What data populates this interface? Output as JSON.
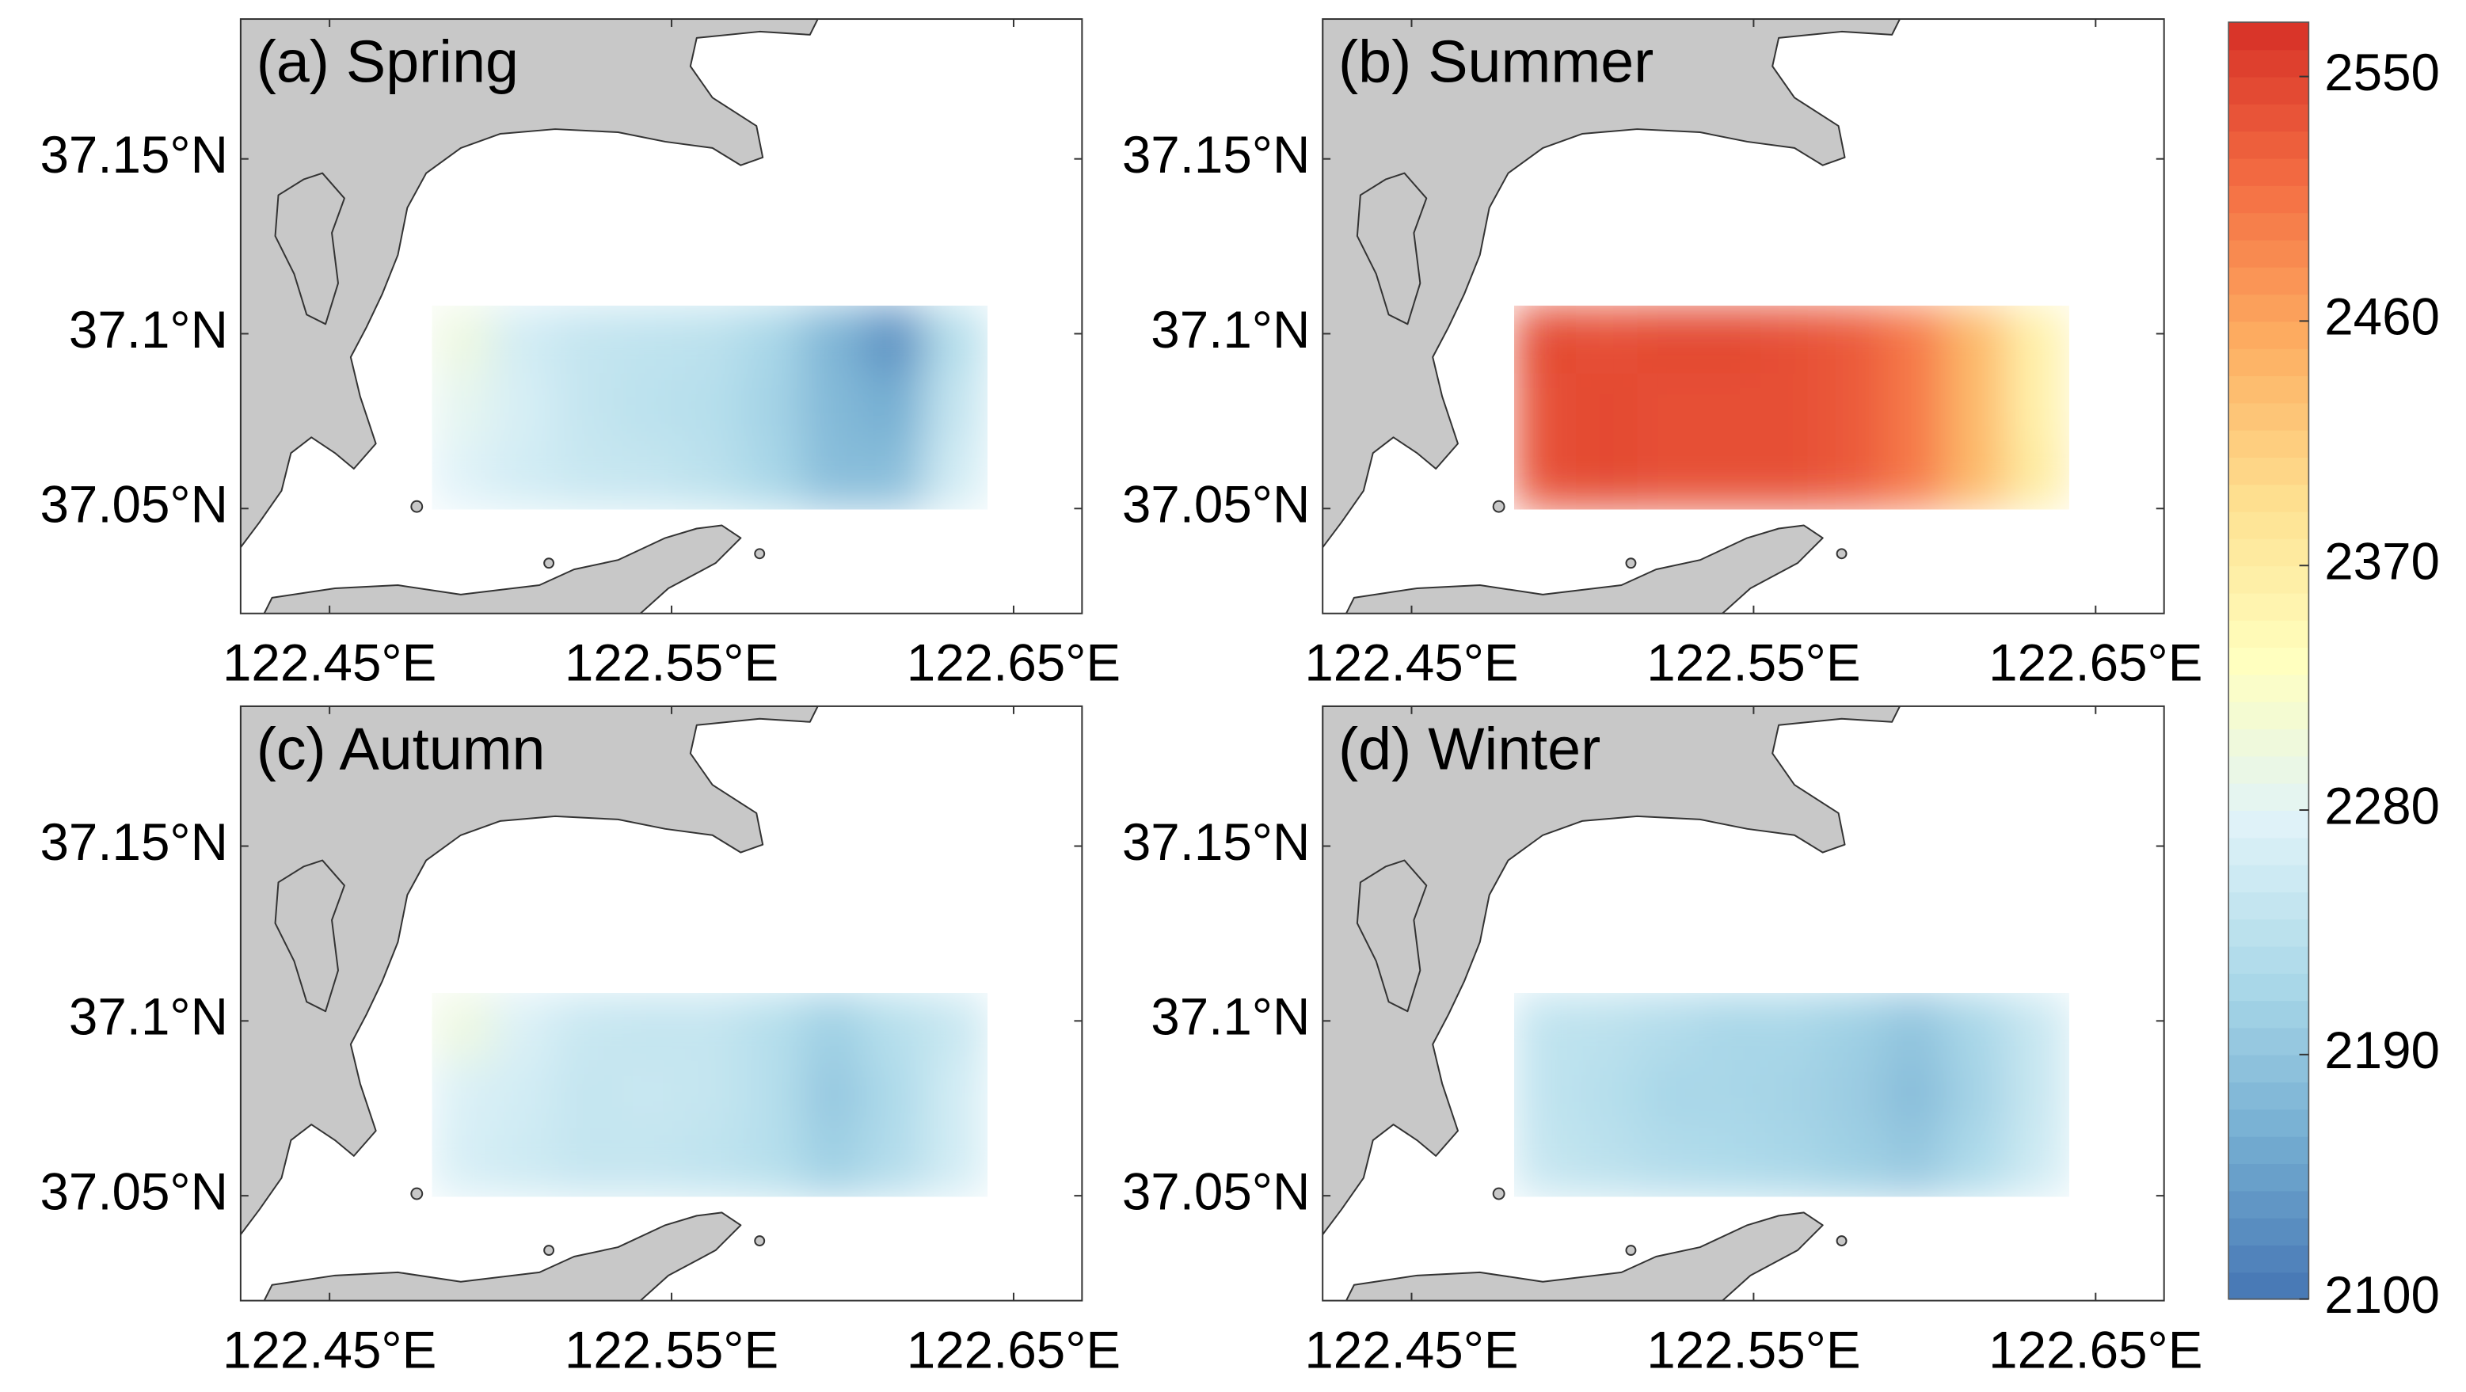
{
  "panels": [
    {
      "title": "(a) Spring",
      "values": [
        [
          2300,
          2260,
          2245,
          2240,
          2235,
          2215,
          2170,
          2130,
          2230
        ],
        [
          2285,
          2265,
          2245,
          2235,
          2230,
          2210,
          2175,
          2160,
          2245
        ],
        [
          2275,
          2260,
          2250,
          2245,
          2235,
          2215,
          2180,
          2180,
          2260
        ]
      ]
    },
    {
      "title": "(b) Summer",
      "values": [
        [
          2545,
          2540,
          2545,
          2545,
          2540,
          2530,
          2500,
          2440,
          2360
        ],
        [
          2540,
          2545,
          2540,
          2540,
          2540,
          2530,
          2500,
          2440,
          2360
        ],
        [
          2540,
          2545,
          2540,
          2540,
          2540,
          2530,
          2500,
          2440,
          2370
        ]
      ]
    },
    {
      "title": "(c) Autumn",
      "values": [
        [
          2300,
          2270,
          2250,
          2245,
          2245,
          2230,
          2205,
          2230,
          2250
        ],
        [
          2270,
          2260,
          2245,
          2250,
          2245,
          2230,
          2195,
          2220,
          2260
        ],
        [
          2265,
          2255,
          2245,
          2245,
          2240,
          2230,
          2205,
          2225,
          2260
        ]
      ]
    },
    {
      "title": "(d) Winter",
      "values": [
        [
          2240,
          2235,
          2225,
          2215,
          2215,
          2205,
          2190,
          2215,
          2250
        ],
        [
          2240,
          2230,
          2215,
          2215,
          2210,
          2200,
          2180,
          2210,
          2250
        ],
        [
          2245,
          2235,
          2225,
          2220,
          2215,
          2205,
          2195,
          2220,
          2255
        ]
      ]
    }
  ],
  "axes": {
    "xlim": [
      122.424,
      122.67
    ],
    "ylim": [
      37.02,
      37.19
    ],
    "xticks": [
      {
        "value": 122.45,
        "label": "122.45°E"
      },
      {
        "value": 122.55,
        "label": "122.55°E"
      },
      {
        "value": 122.65,
        "label": "122.65°E"
      }
    ],
    "yticks": [
      {
        "value": 37.05,
        "label": "37.05°N"
      },
      {
        "value": 37.1,
        "label": "37.1°N"
      },
      {
        "value": 37.15,
        "label": "37.15°N"
      }
    ]
  },
  "field": {
    "lon": [
      122.48,
      122.642
    ],
    "lat": [
      37.05,
      37.108
    ]
  },
  "colorbar": {
    "range": [
      2100,
      2570
    ],
    "ticks": [
      2100,
      2190,
      2280,
      2370,
      2460,
      2550
    ],
    "colors": [
      "#4575b4",
      "#74add1",
      "#abd9e9",
      "#e0f3f8",
      "#ffffbf",
      "#fee090",
      "#fdae61",
      "#f46d43",
      "#d73027"
    ]
  }
}
